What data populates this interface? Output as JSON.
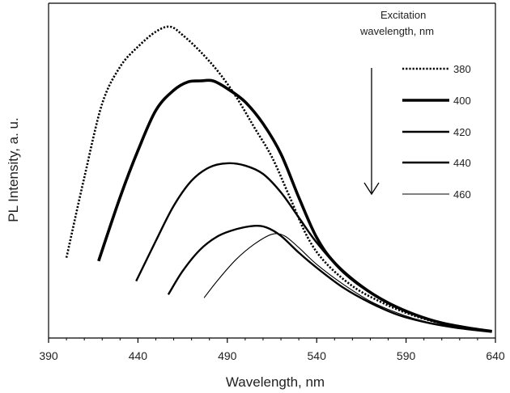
{
  "chart_data": {
    "type": "line",
    "xlabel": "Wavelength, nm",
    "ylabel": "PL Intensity, a. u.",
    "xlim": [
      390,
      640
    ],
    "ylim": [
      0,
      1
    ],
    "xticks": [
      390,
      440,
      490,
      540,
      590,
      640
    ],
    "legend": {
      "title_line1": "Excitation",
      "title_line2": "wavelength, nm",
      "placement": "top-right",
      "arrow": "down"
    },
    "series": [
      {
        "name": "380",
        "style": "dotted",
        "x": [
          400,
          410,
          420,
          430,
          440,
          450,
          458,
          465,
          475,
          485,
          495,
          505,
          515,
          525,
          535,
          545,
          560,
          575,
          590,
          605,
          620,
          638
        ],
        "y": [
          0.24,
          0.48,
          0.7,
          0.81,
          0.87,
          0.915,
          0.93,
          0.905,
          0.855,
          0.795,
          0.72,
          0.63,
          0.54,
          0.42,
          0.3,
          0.225,
          0.155,
          0.11,
          0.075,
          0.05,
          0.035,
          0.02
        ]
      },
      {
        "name": "400",
        "style": "bold",
        "x": [
          418,
          430,
          440,
          450,
          460,
          468,
          475,
          482,
          490,
          500,
          510,
          520,
          530,
          540,
          550,
          565,
          580,
          595,
          610,
          625,
          638
        ],
        "y": [
          0.23,
          0.42,
          0.56,
          0.68,
          0.74,
          0.765,
          0.768,
          0.768,
          0.745,
          0.705,
          0.64,
          0.55,
          0.42,
          0.3,
          0.225,
          0.155,
          0.105,
          0.07,
          0.045,
          0.03,
          0.02
        ]
      },
      {
        "name": "420",
        "style": "medium",
        "x": [
          439,
          450,
          460,
          470,
          480,
          490,
          500,
          510,
          520,
          530,
          540,
          555,
          570,
          585,
          600,
          615,
          628,
          638
        ],
        "y": [
          0.17,
          0.29,
          0.395,
          0.47,
          0.51,
          0.522,
          0.515,
          0.49,
          0.435,
          0.36,
          0.285,
          0.195,
          0.135,
          0.09,
          0.06,
          0.04,
          0.027,
          0.02
        ]
      },
      {
        "name": "440",
        "style": "medium",
        "x": [
          457,
          465,
          475,
          485,
          495,
          505,
          512,
          520,
          530,
          540,
          555,
          570,
          585,
          600,
          615,
          628,
          638
        ],
        "y": [
          0.13,
          0.2,
          0.265,
          0.305,
          0.325,
          0.335,
          0.33,
          0.305,
          0.255,
          0.21,
          0.15,
          0.105,
          0.07,
          0.048,
          0.033,
          0.024,
          0.018
        ]
      },
      {
        "name": "460",
        "style": "thin",
        "x": [
          477,
          485,
          495,
          505,
          515,
          522,
          530,
          540,
          555,
          570,
          585,
          600,
          615,
          628,
          638
        ],
        "y": [
          0.12,
          0.175,
          0.235,
          0.28,
          0.31,
          0.305,
          0.27,
          0.22,
          0.16,
          0.11,
          0.075,
          0.05,
          0.035,
          0.025,
          0.018
        ]
      }
    ]
  }
}
